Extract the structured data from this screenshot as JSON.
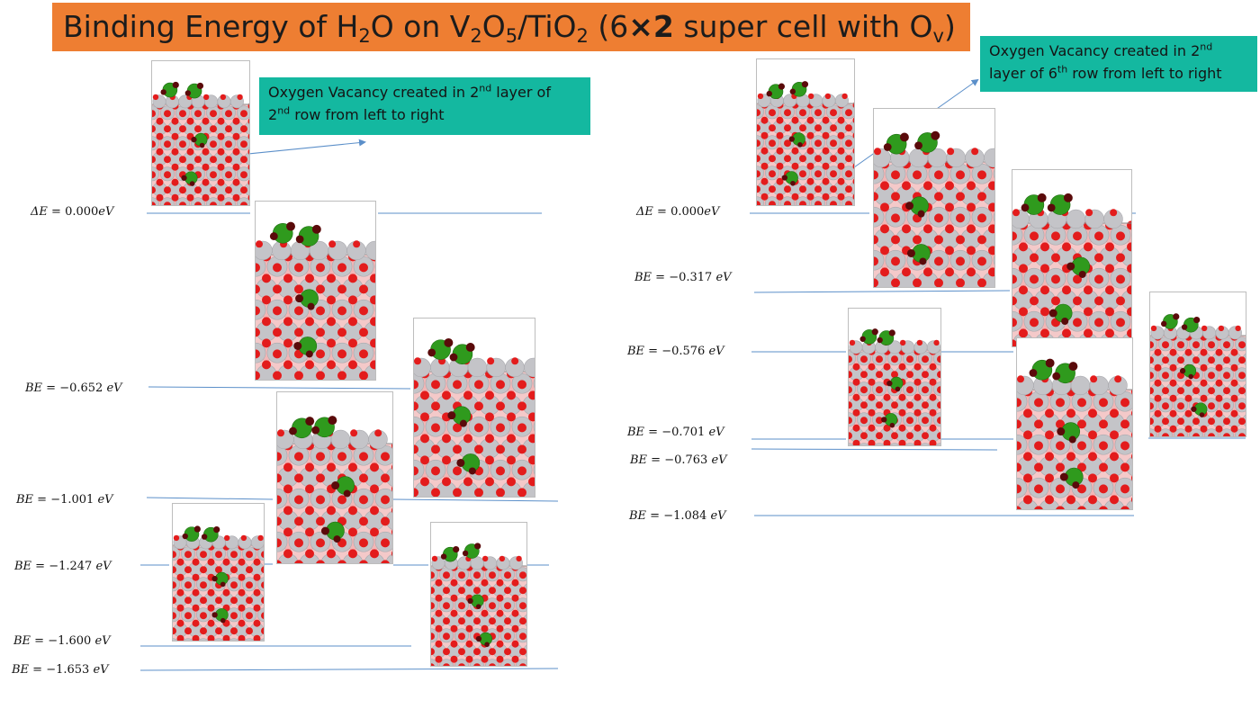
{
  "title": {
    "prefix": "Binding Energy of H",
    "sub1": "2",
    "mid1": "O on V",
    "sub2": "2",
    "mid2": "O",
    "sub3": "5",
    "mid3": "/TiO",
    "sub4": "2",
    "mid4": " (6",
    "times": "×2",
    "mid5": "  super cell with O",
    "sub5": "v",
    "suffix": ")"
  },
  "callout_left": {
    "line1": "Oxygen Vacancy created in 2",
    "sup1": "nd",
    "line1b": " layer of",
    "line2a": "2",
    "sup2": "nd",
    "line2b": " row from left to right"
  },
  "callout_right": {
    "line1": "Oxygen Vacancy created in 2",
    "sup1": "nd",
    "line2a": "layer of 6",
    "sup2": "th",
    "line2b": " row from left to right"
  },
  "left_levels": [
    {
      "symbol": "ΔE",
      "value": "0.000",
      "unit": "eV"
    },
    {
      "symbol": "BE",
      "value": "−0.652",
      "unit": "eV"
    },
    {
      "symbol": "BE",
      "value": "−1.001",
      "unit": "eV"
    },
    {
      "symbol": "BE",
      "value": "−1.247",
      "unit": "eV"
    },
    {
      "symbol": "BE",
      "value": "−1.600",
      "unit": "eV"
    },
    {
      "symbol": "BE",
      "value": "−1.653",
      "unit": "eV"
    }
  ],
  "right_levels": [
    {
      "symbol": "ΔE",
      "value": "0.000",
      "unit": "eV"
    },
    {
      "symbol": "BE",
      "value": "−0.317",
      "unit": "eV"
    },
    {
      "symbol": "BE",
      "value": "−0.576",
      "unit": "eV"
    },
    {
      "symbol": "BE",
      "value": "−0.701",
      "unit": "eV"
    },
    {
      "symbol": "BE",
      "value": "−0.763",
      "unit": "eV"
    },
    {
      "symbol": "BE",
      "value": "−1.084",
      "unit": "eV"
    }
  ],
  "colors": {
    "title_bg": "#ee7e32",
    "callout_bg": "#14b8a0",
    "level_line": "#5b8fc9",
    "oxygen": "#e31c1c",
    "titanium": "#c4c4c8",
    "vanadium": "#f2b6b6",
    "water": "#2f9a1d",
    "hydrogen": "#5a0a0a"
  }
}
